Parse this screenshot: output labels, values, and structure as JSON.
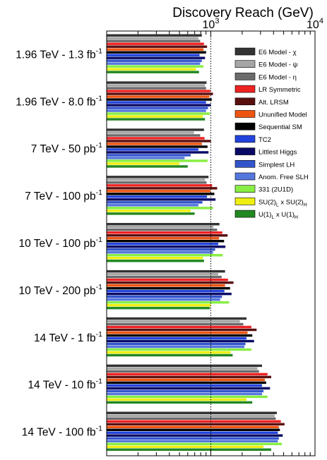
{
  "chart_data": {
    "type": "bar",
    "orientation": "horizontal",
    "title": "Discovery Reach (GeV)",
    "xscale": "log",
    "xlim": [
      100,
      10000
    ],
    "x_ticks": [
      {
        "value": 1000,
        "base": "10",
        "exp": "3"
      },
      {
        "value": 10000,
        "base": "10",
        "exp": "4"
      }
    ],
    "reference_line": 1000,
    "categories": [
      {
        "energy": "1.96 TeV - 1.3 fb",
        "sup": "-1"
      },
      {
        "energy": "1.96 TeV - 8.0 fb",
        "sup": "-1"
      },
      {
        "energy": "7 TeV - 50 pb",
        "sup": "-1"
      },
      {
        "energy": "7 TeV - 100 pb",
        "sup": "-1"
      },
      {
        "energy": "10 TeV - 100 pb",
        "sup": "-1"
      },
      {
        "energy": "10 TeV - 200 pb",
        "sup": "-1"
      },
      {
        "energy": "14 TeV - 1 fb",
        "sup": "-1"
      },
      {
        "energy": "14 TeV - 10 fb",
        "sup": "-1"
      },
      {
        "energy": "14 TeV - 100 fb",
        "sup": "-1"
      }
    ],
    "series": [
      {
        "name": "E6 Model - χ",
        "color": "#333333",
        "values": [
          820,
          910,
          860,
          950,
          1210,
          1370,
          2200,
          3100,
          4300
        ]
      },
      {
        "name": "E6 Model - ψ",
        "color": "#a6a6a6",
        "values": [
          760,
          880,
          690,
          880,
          1060,
          1180,
          1900,
          2800,
          4100
        ]
      },
      {
        "name": "E6 Model - η",
        "color": "#6b6b6b",
        "values": [
          790,
          900,
          790,
          910,
          1150,
          1270,
          2050,
          2900,
          4200
        ]
      },
      {
        "name": "LR Symmetric",
        "color": "#ee2222",
        "values": [
          860,
          990,
          870,
          1030,
          1290,
          1460,
          2450,
          3500,
          4700
        ]
      },
      {
        "name": "Alt. LRSM",
        "color": "#5a0f0f",
        "values": [
          920,
          1050,
          1000,
          1150,
          1450,
          1650,
          2750,
          3800,
          5100
        ]
      },
      {
        "name": "Ununified Model",
        "color": "#ee5511",
        "values": [
          850,
          970,
          820,
          990,
          1200,
          1370,
          2250,
          3300,
          4500
        ]
      },
      {
        "name": "Sequential SM",
        "color": "#000000",
        "values": [
          900,
          1020,
          930,
          1080,
          1340,
          1530,
          2500,
          3400,
          4600
        ]
      },
      {
        "name": "TC2",
        "color": "#2244dd",
        "values": [
          780,
          900,
          760,
          920,
          1180,
          1350,
          2200,
          3100,
          4400
        ]
      },
      {
        "name": "Littlest Higgs",
        "color": "#0a0a66",
        "values": [
          880,
          1000,
          950,
          1110,
          1380,
          1580,
          2600,
          3700,
          4900
        ]
      },
      {
        "name": "Simplest LH",
        "color": "#3355cc",
        "values": [
          820,
          940,
          640,
          830,
          1100,
          1280,
          2150,
          3200,
          4500
        ]
      },
      {
        "name": "Anom. Free SLH",
        "color": "#5577dd",
        "values": [
          790,
          900,
          560,
          760,
          1050,
          1230,
          2100,
          3100,
          4400
        ]
      },
      {
        "name": "331 (2U1D)",
        "color": "#88ee44",
        "values": [
          850,
          980,
          930,
          1050,
          1300,
          1500,
          2450,
          3500,
          4800
        ]
      },
      {
        "name": "SU(2)",
        "name_sub": "L",
        "name_mid": " x SU(2)",
        "name_sub2": "H",
        "color": "#eeee11",
        "values": [
          720,
          840,
          500,
          640,
          840,
          1000,
          1550,
          2200,
          3200
        ]
      },
      {
        "name": "U(1)",
        "name_sub": "L",
        "name_mid": " x U(1)",
        "name_sub2": "H",
        "color": "#228822",
        "values": [
          770,
          880,
          600,
          700,
          860,
          980,
          1620,
          2500,
          3800
        ]
      }
    ],
    "legend_position": "top-right",
    "grid": false
  }
}
